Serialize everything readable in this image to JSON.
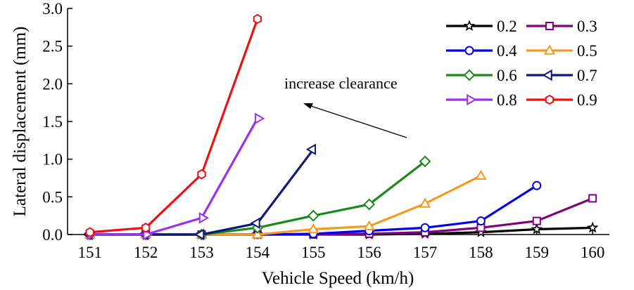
{
  "chart_data": {
    "type": "line",
    "title": "",
    "xlabel": "Vehicle Speed (km/h)",
    "ylabel": "Lateral displacement (mm)",
    "x_ticks": [
      151,
      152,
      153,
      154,
      155,
      156,
      157,
      158,
      159,
      160
    ],
    "y_ticks": [
      "0.0",
      "0.5",
      "1.0",
      "1.5",
      "2.0",
      "2.5",
      "3.0"
    ],
    "xlim": [
      150.6,
      160.3
    ],
    "ylim": [
      0,
      3.0
    ],
    "grid": false,
    "legend_position": "top-right",
    "annotation": "increase clearance",
    "series": [
      {
        "name": "0.2",
        "color": "#000000",
        "marker": "star",
        "x": [
          151,
          152,
          153,
          154,
          155,
          156,
          157,
          158,
          159,
          160
        ],
        "y": [
          0.0,
          0.0,
          0.0,
          0.0,
          0.0,
          0.0,
          0.01,
          0.03,
          0.07,
          0.09
        ]
      },
      {
        "name": "0.3",
        "color": "#800080",
        "marker": "square",
        "x": [
          151,
          152,
          153,
          154,
          155,
          156,
          157,
          158,
          159,
          160
        ],
        "y": [
          0.0,
          0.0,
          0.0,
          0.0,
          0.0,
          0.01,
          0.03,
          0.09,
          0.18,
          0.48
        ]
      },
      {
        "name": "0.4",
        "color": "#0000ee",
        "marker": "circle",
        "x": [
          151,
          152,
          153,
          154,
          155,
          156,
          157,
          158,
          159
        ],
        "y": [
          0.0,
          0.0,
          0.0,
          0.0,
          0.01,
          0.05,
          0.09,
          0.18,
          0.65
        ]
      },
      {
        "name": "0.5",
        "color": "#f59a20",
        "marker": "triangle-up",
        "x": [
          151,
          152,
          153,
          154,
          155,
          156,
          157,
          158
        ],
        "y": [
          0.0,
          0.0,
          0.0,
          0.0,
          0.07,
          0.11,
          0.41,
          0.78
        ]
      },
      {
        "name": "0.6",
        "color": "#1a8a1a",
        "marker": "diamond",
        "x": [
          151,
          152,
          153,
          154,
          155,
          156,
          157
        ],
        "y": [
          0.0,
          0.0,
          0.0,
          0.09,
          0.25,
          0.4,
          0.97
        ]
      },
      {
        "name": "0.7",
        "color": "#0b1b7a",
        "marker": "triangle-left",
        "x": [
          151,
          152,
          153,
          154,
          155
        ],
        "y": [
          0.0,
          0.0,
          0.0,
          0.15,
          1.13
        ]
      },
      {
        "name": "0.8",
        "color": "#9a30f0",
        "marker": "triangle-right",
        "x": [
          151,
          152,
          153,
          154
        ],
        "y": [
          0.0,
          0.0,
          0.22,
          1.54
        ]
      },
      {
        "name": "0.9",
        "color": "#ee1111",
        "marker": "hexagon",
        "x": [
          151,
          152,
          153,
          154
        ],
        "y": [
          0.03,
          0.09,
          0.8,
          2.86
        ]
      }
    ]
  }
}
